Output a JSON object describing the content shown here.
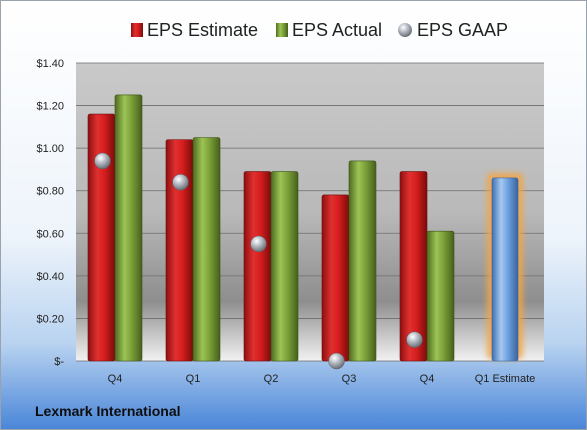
{
  "company": "Lexmark International",
  "colors": {
    "estimate": "#d81e1e",
    "actual": "#7ea23a",
    "gaap": "#9aa0a8",
    "future_estimate": "#6ea3e0",
    "future_glow": "#f4a544"
  },
  "chart_data": {
    "type": "bar",
    "title": "",
    "xlabel": "",
    "ylabel": "",
    "categories": [
      "Q4",
      "Q1",
      "Q2",
      "Q3",
      "Q4",
      "Q1 Estimate"
    ],
    "y_ticks": [
      "$-",
      "$0.20",
      "$0.40",
      "$0.60",
      "$0.80",
      "$1.00",
      "$1.20",
      "$1.40"
    ],
    "ylim": [
      0,
      1.4
    ],
    "grid": true,
    "legend_position": "top",
    "series": [
      {
        "name": "EPS Estimate",
        "kind": "bar",
        "values": [
          1.16,
          1.04,
          0.89,
          0.78,
          0.89,
          null
        ]
      },
      {
        "name": "EPS Actual",
        "kind": "bar",
        "values": [
          1.25,
          1.05,
          0.89,
          0.94,
          0.61,
          null
        ]
      },
      {
        "name": "EPS GAAP",
        "kind": "marker",
        "values": [
          0.94,
          0.84,
          0.55,
          0.0,
          0.1,
          null
        ]
      }
    ],
    "future_estimate": {
      "category": "Q1 Estimate",
      "value": 0.86
    }
  }
}
